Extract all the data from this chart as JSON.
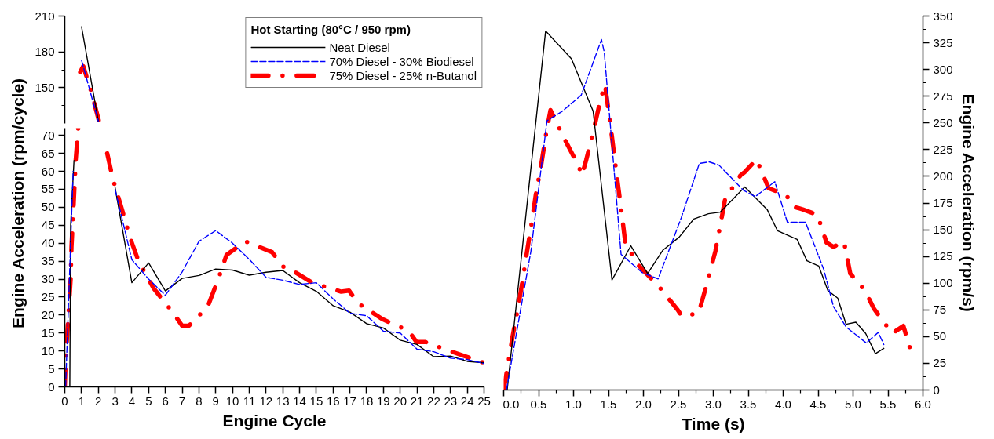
{
  "chart_data": [
    {
      "type": "line",
      "legend_title": "Hot Starting (80°C / 950 rpm)",
      "legend": "top right",
      "tick_labels": "y",
      "xlim": [
        0,
        25
      ],
      "ylim": [
        120,
        210
      ],
      "yticks": [
        {
          "value": 135,
          "label": null
        },
        150,
        {
          "value": 165,
          "label": null
        },
        180,
        {
          "value": 195,
          "label": null
        },
        210
      ],
      "series": [
        {
          "name": "Neat Diesel",
          "color": "#000000",
          "line_style": "solid",
          "x": [
            1,
            2
          ],
          "values": [
            201,
            122
          ]
        },
        {
          "name": "70% Diesel - 30% Biodiesel",
          "color": "#0000ff",
          "line_style": "dashed",
          "x": [
            1,
            2
          ],
          "values": [
            173,
            122
          ]
        },
        {
          "name": "75% Diesel - 25% n-Butanol",
          "color": "#ff0000",
          "line_style": "dashdot",
          "x": [
            0.92,
            1.1,
            1.55,
            2.04
          ],
          "values": [
            163,
            168,
            148,
            122
          ]
        }
      ]
    },
    {
      "type": "line",
      "xlabel": "Engine Cycle",
      "ylabel": "Engine Acceleration (rpm/cycle)",
      "xlim": [
        0,
        25
      ],
      "xticks": [
        0,
        1,
        2,
        3,
        4,
        5,
        6,
        7,
        8,
        9,
        10,
        11,
        12,
        13,
        14,
        15,
        16,
        17,
        18,
        19,
        20,
        21,
        22,
        23,
        24,
        25
      ],
      "ylim": [
        0,
        72
      ],
      "yticks": [
        0,
        5,
        10,
        15,
        20,
        25,
        30,
        35,
        40,
        45,
        50,
        55,
        60,
        65,
        70
      ],
      "series": [
        {
          "color": "#000000",
          "line_style": "solid",
          "x": [
            0.3,
            0.35,
            0.55,
            1,
            2,
            3,
            4,
            5,
            6,
            7,
            8,
            9,
            10,
            11,
            12,
            13,
            14,
            15,
            16,
            17,
            18,
            19,
            20,
            21,
            22,
            23,
            24,
            25
          ],
          "values": [
            0,
            45,
            63,
            null,
            null,
            55.5,
            29,
            34.5,
            26.7,
            30.2,
            31,
            32.8,
            32.5,
            31.1,
            31.9,
            32.4,
            29,
            26.6,
            22.6,
            20.8,
            17.6,
            16.4,
            13,
            11.8,
            8.4,
            8.6,
            7.1,
            6.7
          ]
        },
        {
          "color": "#0000ff",
          "line_style": "dashed",
          "x": [
            0.05,
            0.35,
            0.5,
            1,
            2,
            3,
            4,
            5,
            6,
            7,
            8,
            9,
            10,
            11,
            12,
            13,
            14,
            15,
            16,
            17,
            18,
            19,
            20,
            21,
            22,
            23,
            24,
            25
          ],
          "values": [
            0,
            40,
            60,
            null,
            null,
            55,
            35.4,
            30,
            25.5,
            32,
            40.5,
            43.5,
            40,
            35.5,
            30.5,
            29.7,
            28.5,
            29,
            24.5,
            20.5,
            19.8,
            15.5,
            15,
            10.5,
            9.8,
            8,
            7.6,
            6.5
          ]
        },
        {
          "color": "#ff0000",
          "line_style": "dashdot",
          "x": [
            0,
            0.05,
            0.15,
            0.35,
            0.4,
            0.52,
            0.65,
            0.8,
            0.92,
            1.1,
            1.55,
            2.04,
            2.53,
            2.86,
            3.37,
            3.93,
            4.4,
            5.29,
            6.46,
            7,
            7.4,
            8.52,
            9.2,
            9.64,
            10.77,
            12.36,
            13,
            13.3,
            14.75,
            16.48,
            16.95,
            17.5,
            18.96,
            20.5,
            20.97,
            21.5,
            23.2,
            25
          ],
          "values": [
            0,
            7,
            15,
            30,
            39,
            50,
            63,
            72,
            null,
            null,
            null,
            null,
            65,
            58,
            50,
            41,
            35,
            27.5,
            20.6,
            17,
            17,
            22.3,
            30.6,
            36.7,
            40.5,
            37.5,
            33.5,
            33.2,
            29,
            26.5,
            26.8,
            23.2,
            18.8,
            15.6,
            12.5,
            12.5,
            9.6,
            6.7
          ]
        }
      ]
    },
    {
      "type": "line",
      "xlabel": "Time (s)",
      "y2label": "Engine Acceleration (rpm/s)",
      "xlim": [
        0,
        6
      ],
      "xticks": [
        {
          "value": 0,
          "label": "0.0"
        },
        {
          "value": 0.25,
          "label": null
        },
        0.5,
        {
          "value": 0.75,
          "label": null
        },
        {
          "value": 1,
          "label": "1.0"
        },
        {
          "value": 1.25,
          "label": null
        },
        1.5,
        {
          "value": 1.75,
          "label": null
        },
        {
          "value": 2,
          "label": "2.0"
        },
        {
          "value": 2.25,
          "label": null
        },
        2.5,
        {
          "value": 2.75,
          "label": null
        },
        {
          "value": 3,
          "label": "3.0"
        },
        {
          "value": 3.25,
          "label": null
        },
        3.5,
        {
          "value": 3.75,
          "label": null
        },
        {
          "value": 4,
          "label": "4.0"
        },
        {
          "value": 4.25,
          "label": null
        },
        4.5,
        {
          "value": 4.75,
          "label": null
        },
        {
          "value": 5,
          "label": "5.0"
        },
        {
          "value": 5.25,
          "label": null
        },
        5.5,
        {
          "value": 5.75,
          "label": null
        },
        {
          "value": 6,
          "label": "6.0"
        }
      ],
      "y2lim": [
        0,
        350
      ],
      "y2ticks": [
        0,
        {
          "value": 12.5,
          "label": null
        },
        25,
        {
          "value": 37.5,
          "label": null
        },
        50,
        {
          "value": 62.5,
          "label": null
        },
        75,
        {
          "value": 87.5,
          "label": null
        },
        100,
        {
          "value": 112.5,
          "label": null
        },
        125,
        {
          "value": 137.5,
          "label": null
        },
        150,
        {
          "value": 162.5,
          "label": null
        },
        175,
        {
          "value": 187.5,
          "label": null
        },
        200,
        {
          "value": 212.5,
          "label": null
        },
        225,
        {
          "value": 237.5,
          "label": null
        },
        250,
        {
          "value": 262.5,
          "label": null
        },
        275,
        {
          "value": 287.5,
          "label": null
        },
        300,
        {
          "value": 312.5,
          "label": null
        },
        325,
        {
          "value": 337.5,
          "label": null
        },
        350
      ],
      "series": [
        {
          "color": "#000000",
          "line_style": "solid",
          "axis": "y2",
          "x": [
            0.05,
            0.6,
            0.97,
            1.28,
            1.55,
            1.82,
            2.06,
            2.28,
            2.51,
            2.72,
            2.93,
            3.1,
            3.45,
            3.77,
            3.92,
            4.2,
            4.34,
            4.51,
            4.64,
            4.78,
            4.9,
            5.04,
            5.18,
            5.32,
            5.44
          ],
          "values": [
            0,
            336,
            310,
            261,
            103,
            135,
            109,
            131,
            143,
            160,
            165,
            166.5,
            190,
            169,
            149,
            141,
            121,
            116,
            93,
            86,
            61.5,
            63.5,
            53,
            34,
            39
          ]
        },
        {
          "color": "#0000ff",
          "line_style": "dashed",
          "axis": "y2",
          "x": [
            0.04,
            0.39,
            0.62,
            0.84,
            1.11,
            1.4,
            1.44,
            1.68,
            1.98,
            2.21,
            2.54,
            2.8,
            2.94,
            3.08,
            3.43,
            3.6,
            3.78,
            3.88,
            4.06,
            4.32,
            4.58,
            4.72,
            4.9,
            5.19,
            5.36,
            5.44
          ],
          "values": [
            0,
            130,
            252,
            261,
            276,
            328,
            316,
            127,
            110,
            104,
            161,
            212,
            213.5,
            210.5,
            187,
            181,
            190,
            195,
            157,
            157,
            113,
            78,
            59,
            44,
            54,
            42.5
          ]
        },
        {
          "color": "#ff0000",
          "line_style": "dashdot",
          "axis": "y2",
          "x": [
            0,
            0.06,
            0.13,
            0.21,
            0.27,
            0.34,
            0.41,
            0.46,
            0.54,
            0.61,
            0.67,
            0.87,
            1.07,
            1.12,
            1.18,
            1.29,
            1.39,
            1.45,
            1.53,
            1.63,
            1.69,
            1.74,
            1.91,
            2.22,
            2.49,
            2.55,
            2.79,
            2.91,
            3.03,
            3.09,
            3.17,
            3.39,
            3.45,
            3.62,
            3.79,
            4.05,
            4.13,
            4.28,
            4.49,
            4.62,
            4.72,
            4.87,
            4.96,
            5.17,
            5.3,
            5.56,
            5.72,
            5.82
          ],
          "values": [
            0,
            23,
            51,
            79,
            102,
            132,
            160,
            183,
            212,
            241,
            262,
            235,
            210,
            201,
            215,
            244,
            273,
            286,
            247,
            195,
            165,
            138,
            118,
            97,
            75,
            69,
            72,
            100,
            130,
            151,
            179,
            201,
            204,
            216,
            189,
            182,
            172,
            169,
            164,
            138,
            134,
            139,
            109,
            93,
            76,
            53,
            60,
            38
          ]
        }
      ]
    }
  ]
}
